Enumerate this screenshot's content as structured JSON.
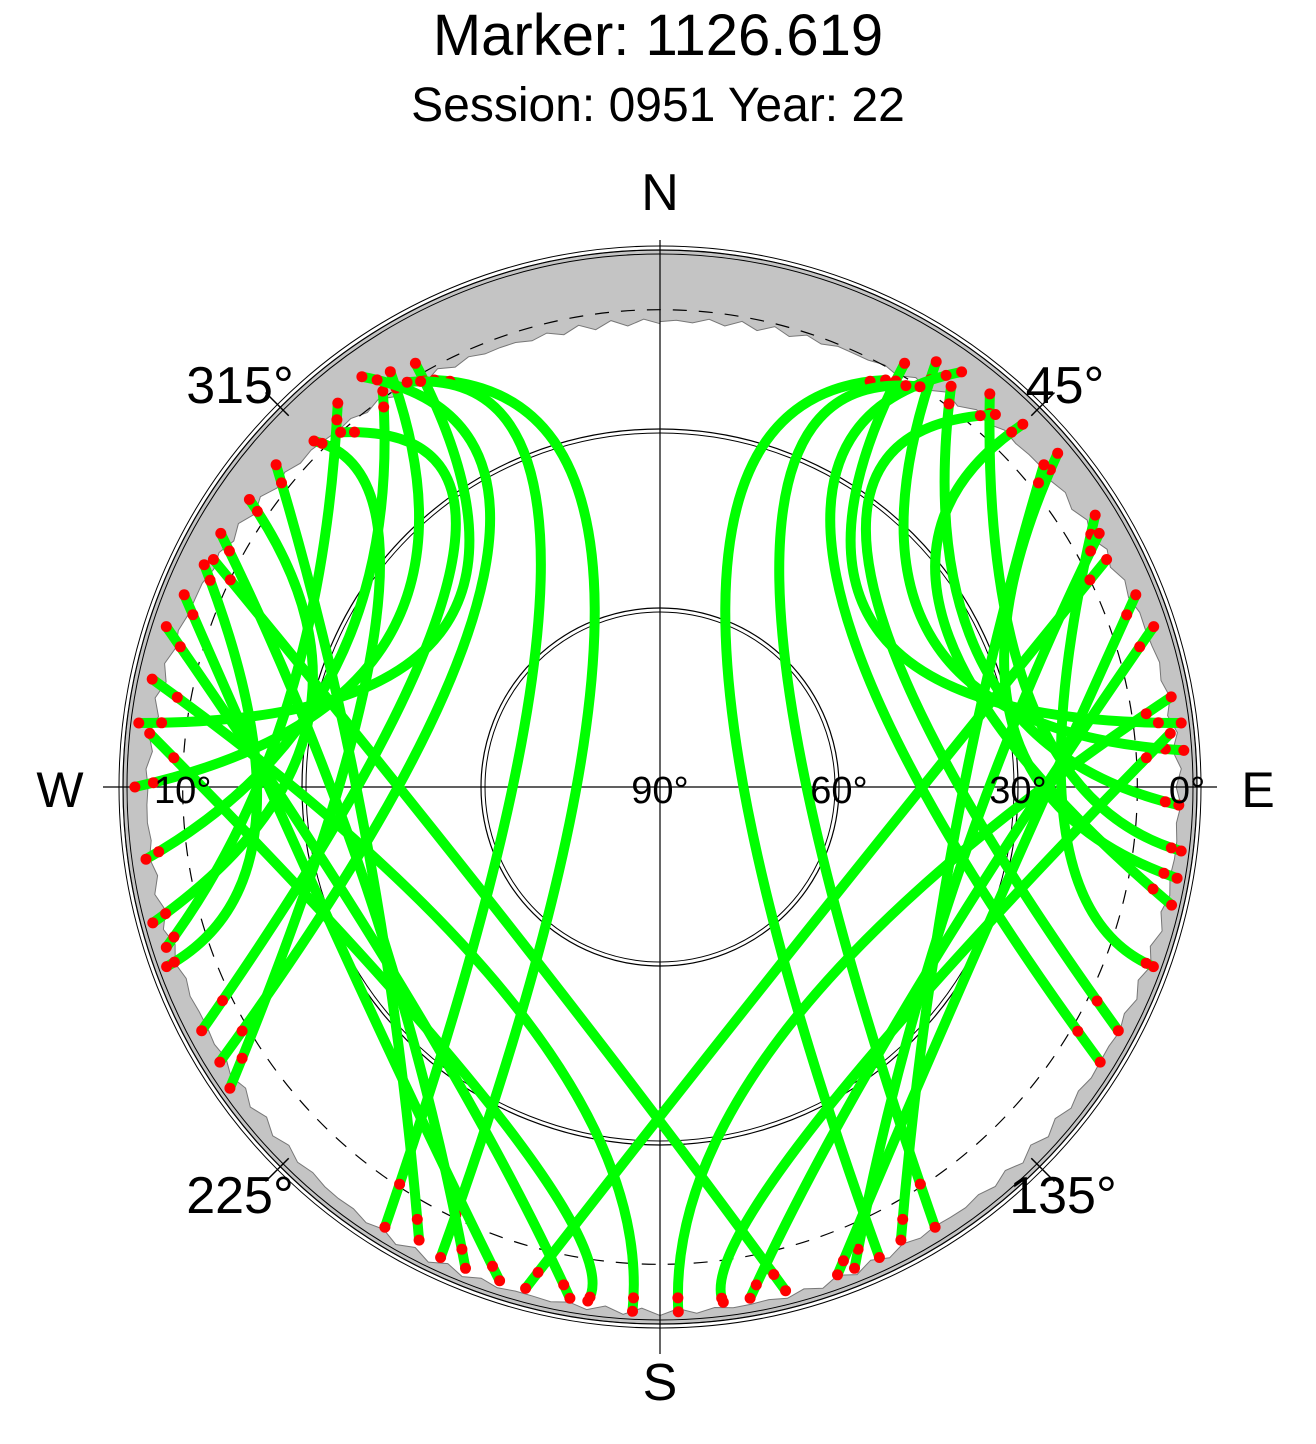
{
  "chart_data": {
    "type": "scatter",
    "subtype": "polar sky plot",
    "title": "Marker: 1126.619",
    "subtitle": "Session: 0951 Year: 22",
    "compass_labels": {
      "north": "N",
      "south": "S",
      "east": "E",
      "west": "W"
    },
    "azimuth_labels": [
      {
        "azimuth_deg": 45,
        "label": "45°"
      },
      {
        "azimuth_deg": 135,
        "label": "135°"
      },
      {
        "azimuth_deg": 225,
        "label": "225°"
      },
      {
        "azimuth_deg": 315,
        "label": "315°"
      }
    ],
    "elevation_labels": [
      {
        "elevation_deg": 90,
        "label": "90°"
      },
      {
        "elevation_deg": 60,
        "label": "60°"
      },
      {
        "elevation_deg": 30,
        "label": "30°"
      },
      {
        "elevation_deg": 0,
        "label": "0°"
      },
      {
        "elevation_deg": 10,
        "label": "10°",
        "side": "west"
      }
    ],
    "elevation_circles_deg": [
      60,
      30,
      0
    ],
    "cutoff_elevation_deg": 10,
    "azimuth_range": [
      0,
      360
    ],
    "elevation_range": [
      0,
      90
    ],
    "colors": {
      "track": "#00ff00",
      "track_edge": "#ff0000",
      "horizon_mask": "#c4c4c4",
      "grid": "#000000"
    },
    "horizon_mask": [
      {
        "az": 0,
        "el": 12
      },
      {
        "az": 15,
        "el": 11
      },
      {
        "az": 30,
        "el": 10
      },
      {
        "az": 45,
        "el": 7
      },
      {
        "az": 60,
        "el": 6
      },
      {
        "az": 75,
        "el": 4
      },
      {
        "az": 90,
        "el": 3
      },
      {
        "az": 105,
        "el": 3
      },
      {
        "az": 120,
        "el": 3
      },
      {
        "az": 135,
        "el": 3
      },
      {
        "az": 150,
        "el": 3
      },
      {
        "az": 165,
        "el": 2
      },
      {
        "az": 180,
        "el": 2
      },
      {
        "az": 195,
        "el": 2
      },
      {
        "az": 210,
        "el": 2
      },
      {
        "az": 225,
        "el": 3
      },
      {
        "az": 240,
        "el": 4
      },
      {
        "az": 255,
        "el": 4
      },
      {
        "az": 270,
        "el": 4
      },
      {
        "az": 285,
        "el": 5
      },
      {
        "az": 300,
        "el": 7
      },
      {
        "az": 315,
        "el": 9
      },
      {
        "az": 330,
        "el": 11
      },
      {
        "az": 345,
        "el": 12
      }
    ],
    "series": [
      {
        "start": {
          "az": 30,
          "el": 8
        },
        "mid": {
          "az": 55,
          "el": 45
        },
        "end": {
          "az": 83,
          "el": 2
        }
      },
      {
        "start": {
          "az": 33,
          "el": 5
        },
        "mid": {
          "az": 62,
          "el": 38
        },
        "end": {
          "az": 86,
          "el": 2
        }
      },
      {
        "start": {
          "az": 36,
          "el": 7
        },
        "mid": {
          "az": 70,
          "el": 32
        },
        "end": {
          "az": 92,
          "el": 3
        }
      },
      {
        "start": {
          "az": 40,
          "el": 4
        },
        "mid": {
          "az": 78,
          "el": 26
        },
        "end": {
          "az": 97,
          "el": 2
        }
      },
      {
        "start": {
          "az": 42,
          "el": 6
        },
        "mid": {
          "az": 45,
          "el": 40
        },
        "end": {
          "az": 118,
          "el": 3
        }
      },
      {
        "start": {
          "az": 45,
          "el": 4
        },
        "mid": {
          "az": 60,
          "el": 35
        },
        "end": {
          "az": 103,
          "el": 2
        }
      },
      {
        "start": {
          "az": 36,
          "el": 4
        },
        "mid": {
          "az": 40,
          "el": 44
        },
        "end": {
          "az": 122,
          "el": 3
        }
      },
      {
        "start": {
          "az": 50,
          "el": 3
        },
        "mid": {
          "az": 80,
          "el": 30
        },
        "end": {
          "az": 100,
          "el": 2
        }
      },
      {
        "start": {
          "az": 58,
          "el": 4
        },
        "mid": {
          "az": 95,
          "el": 22
        },
        "end": {
          "az": 110,
          "el": 2
        }
      },
      {
        "start": {
          "az": 29,
          "el": 12
        },
        "mid": {
          "az": 20,
          "el": 58
        },
        "end": {
          "az": 155,
          "el": 3
        }
      },
      {
        "start": {
          "az": 33,
          "el": 10
        },
        "mid": {
          "az": 30,
          "el": 50
        },
        "end": {
          "az": 148,
          "el": 3
        }
      },
      {
        "start": {
          "az": 50,
          "el": 6
        },
        "mid": {
          "az": 100,
          "el": 40
        },
        "end": {
          "az": 152,
          "el": 4
        }
      },
      {
        "start": {
          "az": 60,
          "el": 5
        },
        "mid": {
          "az": 110,
          "el": 38
        },
        "end": {
          "az": 158,
          "el": 3
        }
      },
      {
        "start": {
          "az": 68,
          "el": 4
        },
        "mid": {
          "az": 120,
          "el": 30
        },
        "end": {
          "az": 160,
          "el": 3
        }
      },
      {
        "start": {
          "az": 72,
          "el": 3
        },
        "mid": {
          "az": 130,
          "el": 35
        },
        "end": {
          "az": 170,
          "el": 3
        }
      },
      {
        "start": {
          "az": 80,
          "el": 3
        },
        "mid": {
          "az": 150,
          "el": 45
        },
        "end": {
          "az": 178,
          "el": 2
        }
      },
      {
        "start": {
          "az": 330,
          "el": 8
        },
        "mid": {
          "az": 305,
          "el": 45
        },
        "end": {
          "az": 277,
          "el": 2
        }
      },
      {
        "start": {
          "az": 327,
          "el": 7
        },
        "mid": {
          "az": 298,
          "el": 38
        },
        "end": {
          "az": 270,
          "el": 2
        }
      },
      {
        "start": {
          "az": 325,
          "el": 9
        },
        "mid": {
          "az": 290,
          "el": 32
        },
        "end": {
          "az": 262,
          "el": 3
        }
      },
      {
        "start": {
          "az": 320,
          "el": 6
        },
        "mid": {
          "az": 282,
          "el": 26
        },
        "end": {
          "az": 252,
          "el": 3
        }
      },
      {
        "start": {
          "az": 318,
          "el": 10
        },
        "mid": {
          "az": 315,
          "el": 40
        },
        "end": {
          "az": 242,
          "el": 3
        }
      },
      {
        "start": {
          "az": 315,
          "el": 8
        },
        "mid": {
          "az": 300,
          "el": 35
        },
        "end": {
          "az": 235,
          "el": 2
        }
      },
      {
        "start": {
          "az": 324,
          "el": 5
        },
        "mid": {
          "az": 320,
          "el": 44
        },
        "end": {
          "az": 238,
          "el": 3
        }
      },
      {
        "start": {
          "az": 305,
          "el": 6
        },
        "mid": {
          "az": 280,
          "el": 30
        },
        "end": {
          "az": 255,
          "el": 2
        }
      },
      {
        "start": {
          "az": 296,
          "el": 5
        },
        "mid": {
          "az": 265,
          "el": 22
        },
        "end": {
          "az": 250,
          "el": 2
        }
      },
      {
        "start": {
          "az": 331,
          "el": 12
        },
        "mid": {
          "az": 340,
          "el": 58
        },
        "end": {
          "az": 205,
          "el": 3
        }
      },
      {
        "start": {
          "az": 328,
          "el": 10
        },
        "mid": {
          "az": 330,
          "el": 50
        },
        "end": {
          "az": 212,
          "el": 3
        }
      },
      {
        "start": {
          "az": 310,
          "el": 6
        },
        "mid": {
          "az": 260,
          "el": 40
        },
        "end": {
          "az": 208,
          "el": 4
        }
      },
      {
        "start": {
          "az": 300,
          "el": 5
        },
        "mid": {
          "az": 250,
          "el": 38
        },
        "end": {
          "az": 202,
          "el": 3
        }
      },
      {
        "start": {
          "az": 292,
          "el": 4
        },
        "mid": {
          "az": 240,
          "el": 30
        },
        "end": {
          "az": 198,
          "el": 3
        }
      },
      {
        "start": {
          "az": 288,
          "el": 3
        },
        "mid": {
          "az": 230,
          "el": 35
        },
        "end": {
          "az": 190,
          "el": 3
        }
      },
      {
        "start": {
          "az": 282,
          "el": 3
        },
        "mid": {
          "az": 210,
          "el": 45
        },
        "end": {
          "az": 183,
          "el": 2
        }
      },
      {
        "start": {
          "az": 276,
          "el": 4
        },
        "mid": {
          "az": 205,
          "el": 28
        },
        "end": {
          "az": 188,
          "el": 3
        }
      },
      {
        "start": {
          "az": 84,
          "el": 4
        },
        "mid": {
          "az": 155,
          "el": 28
        },
        "end": {
          "az": 173,
          "el": 3
        }
      },
      {
        "start": {
          "az": 63,
          "el": 6
        },
        "mid": {
          "az": 140,
          "el": 55
        },
        "end": {
          "az": 195,
          "el": 3
        }
      },
      {
        "start": {
          "az": 297,
          "el": 6
        },
        "mid": {
          "az": 220,
          "el": 55
        },
        "end": {
          "az": 166,
          "el": 3
        }
      }
    ]
  }
}
